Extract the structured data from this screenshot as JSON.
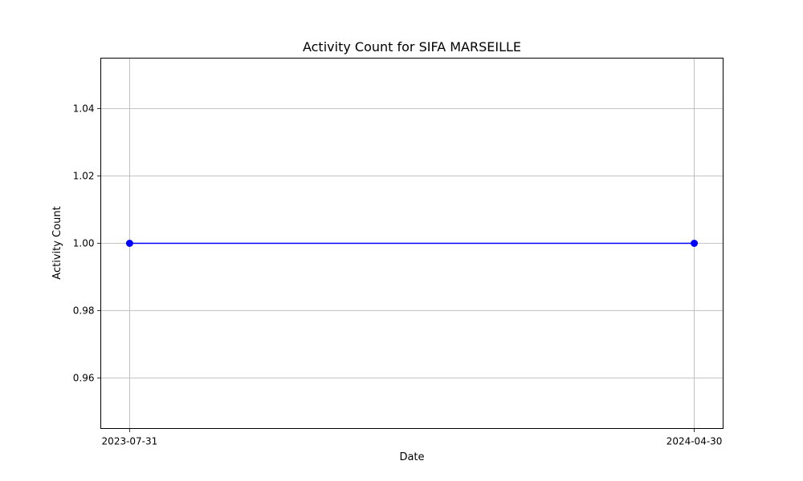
{
  "chart_data": {
    "type": "line",
    "title": "Activity Count for SIFA MARSEILLE",
    "xlabel": "Date",
    "ylabel": "Activity Count",
    "x": [
      "2023-07-31",
      "2024-04-30"
    ],
    "series": [
      {
        "values": [
          1.0,
          1.0
        ],
        "color": "#0000ff",
        "marker": "circle"
      }
    ],
    "xlim": [
      "2023-07-17",
      "2024-05-14"
    ],
    "xticks": [
      "2023-07-31",
      "2024-04-30"
    ],
    "ylim": [
      0.945,
      1.055
    ],
    "yticks": [
      0.96,
      0.98,
      1.0,
      1.02,
      1.04
    ],
    "ytick_labels": [
      "0.96",
      "0.98",
      "1.00",
      "1.02",
      "1.04"
    ],
    "grid": true,
    "legend": "none"
  }
}
